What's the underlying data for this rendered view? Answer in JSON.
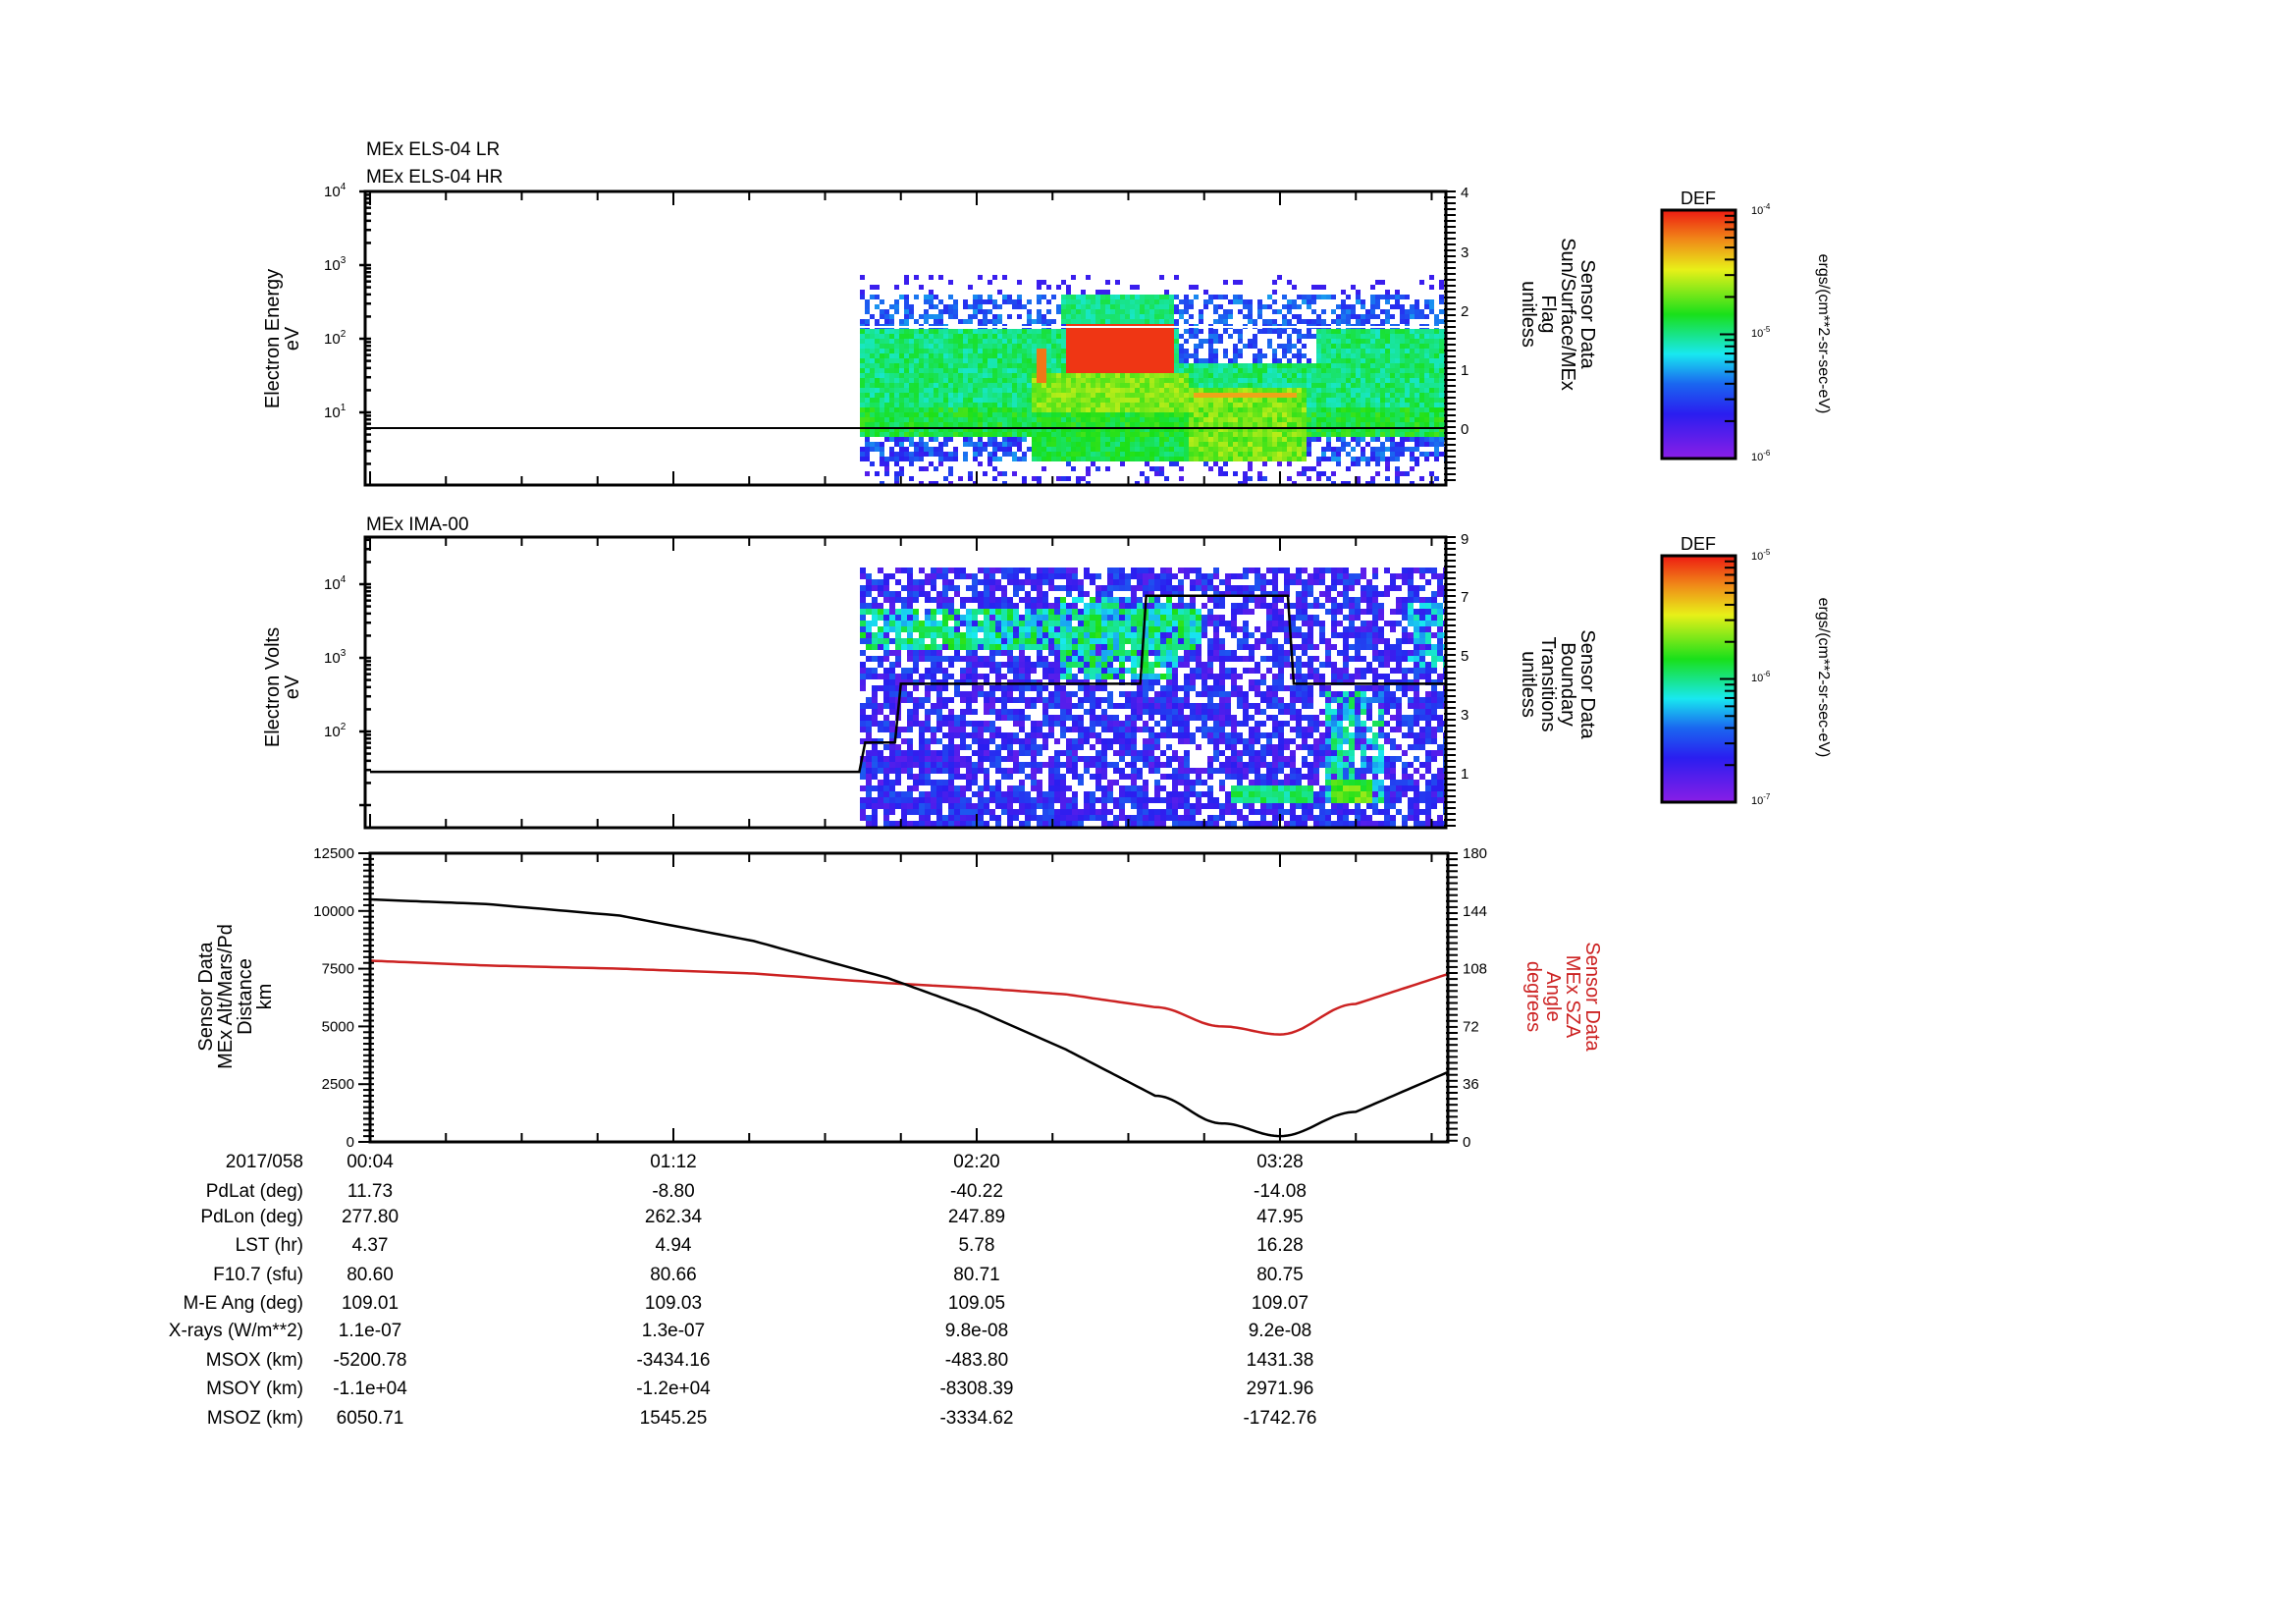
{
  "chart_data": [
    {
      "type": "heatmap",
      "title": "MEx ELS-04 LR / MEx ELS-04 HR",
      "titles": [
        "MEx ELS-04 LR",
        "MEx ELS-04 HR"
      ],
      "ylabel": [
        "Electron Energy",
        "eV"
      ],
      "yscale": "log",
      "ylim": [
        1.0,
        10000
      ],
      "yticks": [
        "10^1",
        "10^2",
        "10^3",
        "10^4"
      ],
      "right_axis": {
        "label": [
          "Sensor Data",
          "Sun/Surface/MEx",
          "Flag",
          "unitless"
        ],
        "ticks": [
          0,
          1,
          2,
          3,
          4
        ],
        "ylim": [
          -0.9,
          4
        ]
      },
      "data_start_time": "01:52",
      "overlay_lines": [
        {
          "name": "flag",
          "color": "#000000",
          "value": 0
        },
        {
          "name": "hr-boundary",
          "color": "#ffffff",
          "energy_eV": 150
        }
      ],
      "features": [
        {
          "desc": "broad green/cyan band",
          "energy_range_eV": [
            5,
            150
          ],
          "time_range": [
            "01:52",
            "04:06"
          ]
        },
        {
          "desc": "intense red region",
          "energy_range_eV": [
            45,
            150
          ],
          "time_range": [
            "02:40",
            "03:10"
          ]
        },
        {
          "desc": "orange streak",
          "energy_range_eV": [
            15,
            30
          ],
          "time_range": [
            "03:14",
            "03:35"
          ]
        }
      ],
      "colorbar": {
        "label": "DEF",
        "units": "ergs/(cm**2-sr-sec-eV)",
        "range": [
          1e-06,
          0.0001
        ],
        "ticks": [
          "10^-4",
          "10^-5",
          "10^-6"
        ]
      }
    },
    {
      "type": "heatmap",
      "title": "MEx IMA-00",
      "ylabel": [
        "Electron Volts",
        "eV"
      ],
      "yscale": "log",
      "ylim": [
        10,
        40000
      ],
      "yticks": [
        "10^2",
        "10^3",
        "10^4"
      ],
      "right_axis": {
        "label": [
          "Sensor Data",
          "Boundary",
          "Transitions",
          "unitless"
        ],
        "ticks": [
          1,
          3,
          5,
          7,
          9
        ],
        "ylim": [
          -0.9,
          9
        ]
      },
      "boundary_transitions": {
        "color": "#000000",
        "steps": [
          {
            "time": "00:04",
            "value": 1
          },
          {
            "time": "01:55",
            "value": 2
          },
          {
            "time": "02:03",
            "value": 4
          },
          {
            "time": "02:58",
            "value": 7
          },
          {
            "time": "03:28",
            "value": 4
          },
          {
            "time": "04:06",
            "value": 4
          }
        ]
      },
      "data_start_time": "01:52",
      "colorbar": {
        "label": "DEF",
        "units": "ergs/(cm**2-sr-sec-eV)",
        "range": [
          1e-07,
          1e-05
        ],
        "ticks": [
          "10^-5",
          "10^-6",
          "10^-7"
        ]
      }
    },
    {
      "type": "line",
      "title": "",
      "ylabel": [
        "Sensor Data",
        "MEx Alt/Mars/Pd",
        "Distance",
        "km"
      ],
      "ylim": [
        0,
        12500
      ],
      "yticks": [
        0,
        2500,
        5000,
        7500,
        10000,
        12500
      ],
      "right_axis": {
        "label": [
          "Sensor Data",
          "MEx SZA",
          "Angle",
          "degrees"
        ],
        "color": "#cc2222",
        "ticks": [
          0,
          36,
          72,
          108,
          144,
          180
        ],
        "ylim": [
          0,
          180
        ]
      },
      "x": [
        "00:04",
        "00:30",
        "01:00",
        "01:30",
        "02:00",
        "02:20",
        "02:40",
        "03:00",
        "03:15",
        "03:28",
        "03:45",
        "04:06"
      ],
      "series": [
        {
          "name": "MEx Alt/Mars/Pd Distance (km)",
          "color": "#000000",
          "axis": "left",
          "values": [
            10500,
            10300,
            9800,
            8700,
            7100,
            5700,
            4000,
            2000,
            800,
            250,
            1300,
            3050
          ]
        },
        {
          "name": "MEx SZA Angle (deg)",
          "color": "#cc2222",
          "axis": "right",
          "values": [
            113,
            110,
            108,
            105,
            99,
            96,
            92,
            84,
            72,
            67,
            86,
            105
          ]
        }
      ]
    }
  ],
  "x_axis": {
    "date": "2017/058",
    "major_ticks": [
      "00:04",
      "01:12",
      "02:20",
      "03:28"
    ],
    "range": [
      "00:04",
      "04:06"
    ]
  },
  "ephemeris_table": {
    "header": "2017/058",
    "columns": [
      "00:04",
      "01:12",
      "02:20",
      "03:28"
    ],
    "rows": [
      {
        "label": "PdLat (deg)",
        "values": [
          "11.73",
          "-8.80",
          "-40.22",
          "-14.08"
        ]
      },
      {
        "label": "PdLon (deg)",
        "values": [
          "277.80",
          "262.34",
          "247.89",
          "47.95"
        ]
      },
      {
        "label": "LST (hr)",
        "values": [
          "4.37",
          "4.94",
          "5.78",
          "16.28"
        ]
      },
      {
        "label": "F10.7 (sfu)",
        "values": [
          "80.60",
          "80.66",
          "80.71",
          "80.75"
        ]
      },
      {
        "label": "M-E Ang (deg)",
        "values": [
          "109.01",
          "109.03",
          "109.05",
          "109.07"
        ]
      },
      {
        "label": "X-rays (W/m**2)",
        "values": [
          "1.1e-07",
          "1.3e-07",
          "9.8e-08",
          "9.2e-08"
        ]
      },
      {
        "label": "MSOX (km)",
        "values": [
          "-5200.78",
          "-3434.16",
          "-483.80",
          "1431.38"
        ]
      },
      {
        "label": "MSOY (km)",
        "values": [
          "-1.1e+04",
          "-1.2e+04",
          "-8308.39",
          "2971.96"
        ]
      },
      {
        "label": "MSOZ (km)",
        "values": [
          "6050.71",
          "1545.25",
          "-3334.62",
          "-1742.76"
        ]
      }
    ]
  },
  "labels": {
    "p1_title1": "MEx ELS-04 LR",
    "p1_title2": "MEx ELS-04 HR",
    "p1_ylabel1": "Electron Energy",
    "p1_ylabel2": "eV",
    "p1_r1": "Sensor Data",
    "p1_r2": "Sun/Surface/MEx",
    "p1_r3": "Flag",
    "p1_r4": "unitless",
    "p2_title": "MEx IMA-00",
    "p2_ylabel1": "Electron Volts",
    "p2_ylabel2": "eV",
    "p2_r1": "Sensor Data",
    "p2_r2": "Boundary",
    "p2_r3": "Transitions",
    "p2_r4": "unitless",
    "p3_l1": "Sensor Data",
    "p3_l2": "MEx Alt/Mars/Pd",
    "p3_l3": "Distance",
    "p3_l4": "km",
    "p3_r1": "Sensor Data",
    "p3_r2": "MEx SZA",
    "p3_r3": "Angle",
    "p3_r4": "degrees",
    "cb_title": "DEF",
    "cb_units": "ergs/(cm**2-sr-sec-eV)"
  }
}
